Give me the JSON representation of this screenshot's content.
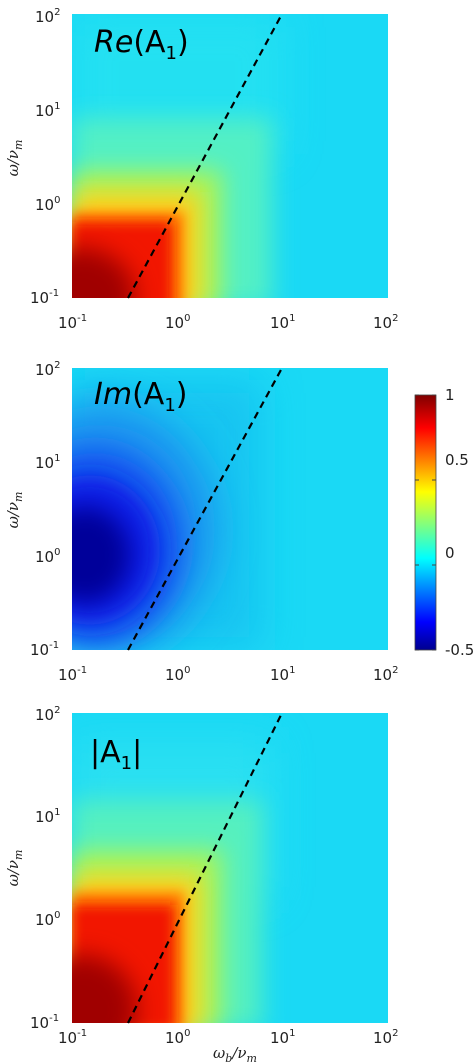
{
  "chart_data": {
    "type": "heatmap",
    "xscale": "log",
    "yscale": "log",
    "xlim": [
      0.1,
      100
    ],
    "ylim": [
      0.1,
      100
    ],
    "x_tick_labels": [
      "10-1",
      "100",
      "101",
      "102"
    ],
    "y_tick_labels": [
      "10-1",
      "100",
      "101",
      "102"
    ],
    "ylabel": "ω/νm",
    "xlabel": "ωb/νm",
    "colormap": "jet",
    "colorbar": {
      "range": [
        -0.5,
        1
      ],
      "ticks": [
        -0.5,
        0,
        0.5,
        1
      ],
      "tick_labels": [
        "-0.5",
        "0",
        "0.5",
        "1"
      ]
    },
    "reference_line": {
      "style": "dashed",
      "color": "#000000",
      "x": [
        0.33,
        9.0
      ],
      "y": [
        0.1,
        100
      ]
    },
    "panels": [
      {
        "title_parts": [
          "Re",
          "(A",
          "1",
          ")"
        ],
        "peak_value": 1.0,
        "peak_location": [
          0.1,
          0.1
        ],
        "background_value": 0.0,
        "description_values": "positive, maximum ~1 at low ω_b and low ω"
      },
      {
        "title_parts": [
          "Im",
          "(A",
          "1",
          ")"
        ],
        "peak_value": -0.5,
        "peak_location": [
          0.1,
          1.0
        ],
        "background_value": 0.0,
        "description_values": "negative, minimum ~-0.5 near ω/ν_m = 1"
      },
      {
        "title_parts": [
          "|A",
          "1",
          "|"
        ],
        "peak_value": 1.0,
        "peak_location": [
          0.1,
          0.1
        ],
        "background_value": 0.0,
        "description_values": "magnitude, maximum ~1 at low ω_b and low ω"
      }
    ]
  }
}
